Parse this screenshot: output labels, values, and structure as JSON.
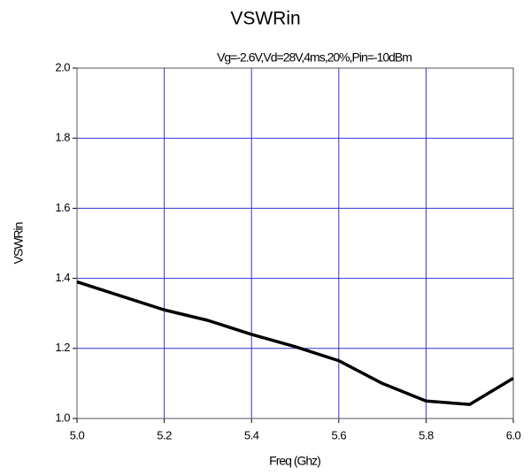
{
  "chart_data": {
    "type": "line",
    "title": "VSWRin",
    "subtitle": "Vg=-2.6V,Vd=28V,4ms,20%,Pin=-10dBm",
    "x_label": "Freq (Ghz)",
    "y_label": "VSWRin",
    "x": [
      5.0,
      5.1,
      5.2,
      5.3,
      5.4,
      5.5,
      5.6,
      5.7,
      5.8,
      5.9,
      6.0
    ],
    "series": [
      {
        "name": "VSWRin",
        "color": "#000000",
        "values": [
          1.39,
          1.35,
          1.31,
          1.28,
          1.24,
          1.205,
          1.165,
          1.1,
          1.05,
          1.04,
          1.115
        ]
      }
    ],
    "xlim": [
      5.0,
      6.0
    ],
    "xticks": [
      {
        "value": 5,
        "label": "5.0"
      },
      5.2,
      5.4,
      5.6,
      5.8,
      {
        "value": 6,
        "label": "6.0"
      }
    ],
    "ylim": [
      1.0,
      2.0
    ],
    "yticks": [
      {
        "value": 1,
        "label": "1.0"
      },
      1.2,
      1.4,
      1.6,
      1.8,
      {
        "value": 2,
        "label": "2.0"
      }
    ],
    "grid": true,
    "grid_color": "#3333cc"
  }
}
